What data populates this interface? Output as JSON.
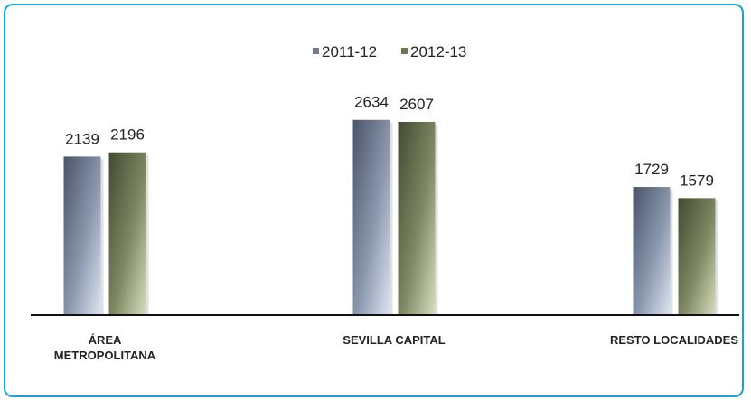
{
  "chart_data": {
    "type": "bar",
    "categories": [
      "ÁREA\nMETROPOLITANA",
      "SEVILLA CAPITAL",
      "RESTO LOCALIDADES"
    ],
    "series": [
      {
        "name": "2011-12",
        "values": [
          2139,
          2634,
          1729
        ],
        "color": "#6f7c94"
      },
      {
        "name": "2012-13",
        "values": [
          2196,
          2607,
          1579
        ],
        "color": "#6f7752"
      }
    ],
    "title": "",
    "xlabel": "",
    "ylabel": "",
    "ylim": [
      0,
      2800
    ],
    "grid": false,
    "legend_position": "top-center"
  }
}
